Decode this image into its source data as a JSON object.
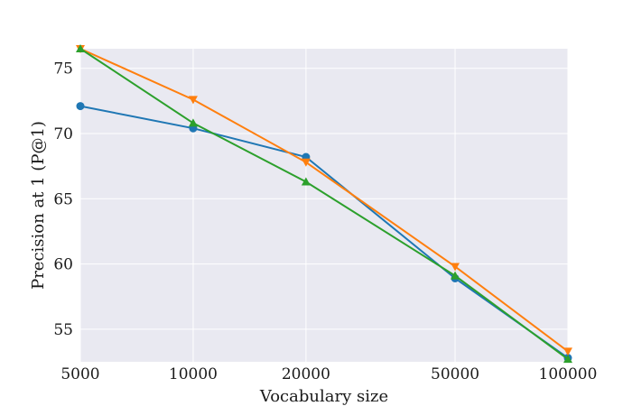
{
  "chart_data": {
    "type": "line",
    "title": "",
    "xlabel": "Vocabulary size",
    "ylabel": "Precision at 1 (P@1)",
    "xscale": "log",
    "x": [
      5000,
      10000,
      20000,
      50000,
      100000
    ],
    "x_ticks": [
      "5000",
      "10000",
      "20000",
      "50000",
      "100000"
    ],
    "y_ticks": [
      "55",
      "60",
      "65",
      "70",
      "75"
    ],
    "xlim": [
      5000,
      100000
    ],
    "ylim": [
      52.5,
      76.5
    ],
    "grid": true,
    "legend": "none",
    "background": "#e9e9f1",
    "series": [
      {
        "color": "#1f77b4",
        "marker": "circle",
        "values": [
          72.1,
          70.4,
          68.2,
          58.9,
          52.8
        ]
      },
      {
        "color": "#ff7f0e",
        "marker": "triangle-down",
        "values": [
          76.5,
          72.6,
          67.8,
          59.8,
          53.3
        ]
      },
      {
        "color": "#2ca02c",
        "marker": "triangle-up",
        "values": [
          76.5,
          70.8,
          66.3,
          59.1,
          52.7
        ]
      }
    ]
  }
}
